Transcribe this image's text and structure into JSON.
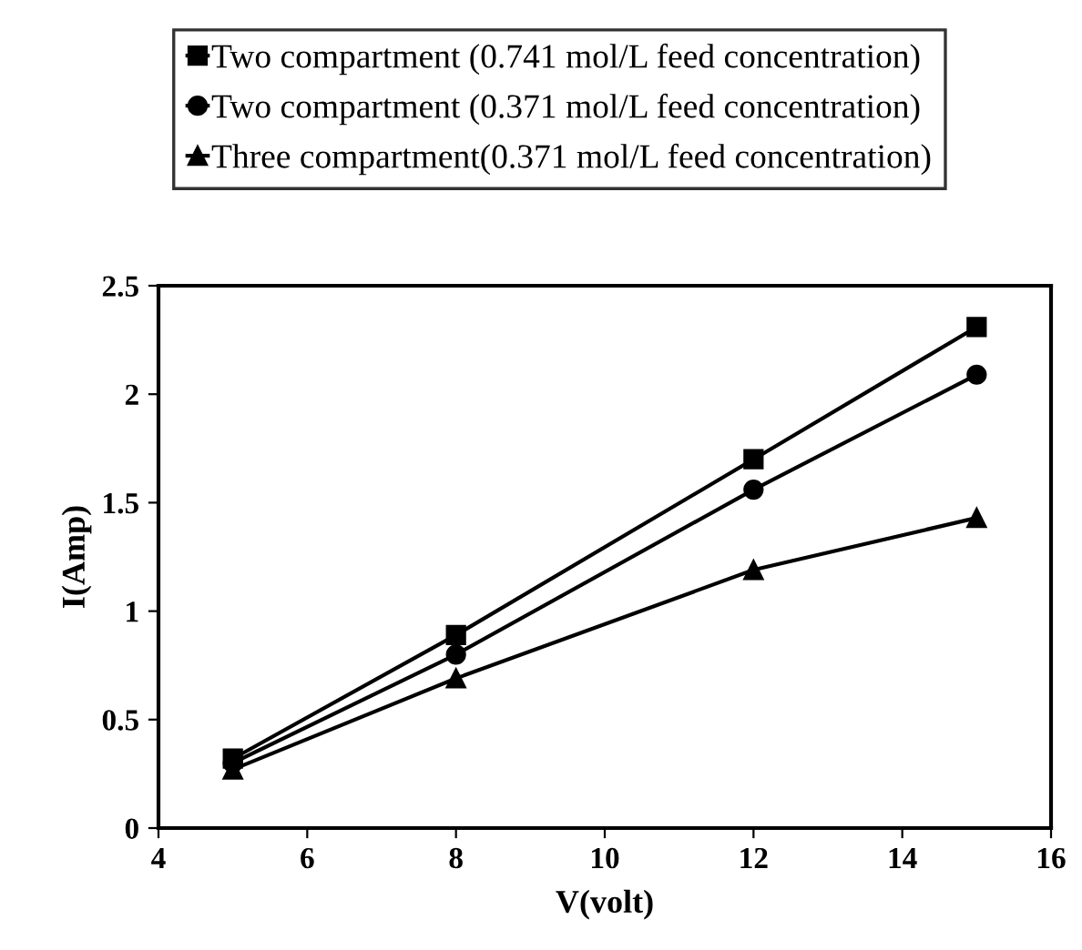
{
  "chart_data": {
    "type": "line",
    "xlabel": "V(volt)",
    "ylabel": "I(Amp)",
    "x": [
      5,
      8,
      12,
      15
    ],
    "series": [
      {
        "name": "Two compartment (0.741 mol/L feed concentration)",
        "color": "#000000",
        "marker": "square",
        "values": [
          0.32,
          0.89,
          1.7,
          2.31
        ]
      },
      {
        "name": "Two compartment (0.371 mol/L feed concentration)",
        "color": "#000000",
        "marker": "circle",
        "values": [
          0.3,
          0.8,
          1.56,
          2.09
        ]
      },
      {
        "name": "Three compartment(0.371 mol/L feed concentration)",
        "color": "#000000",
        "marker": "triangle",
        "values": [
          0.27,
          0.69,
          1.19,
          1.43
        ]
      }
    ],
    "xlim": [
      4,
      16
    ],
    "xticks": [
      4,
      6,
      8,
      10,
      12,
      14,
      16
    ],
    "ylim": [
      0,
      2.5
    ],
    "yticks": [
      0,
      0.5,
      1,
      1.5,
      2,
      2.5
    ],
    "grid": false,
    "legend": "top",
    "line_style": "solid"
  }
}
